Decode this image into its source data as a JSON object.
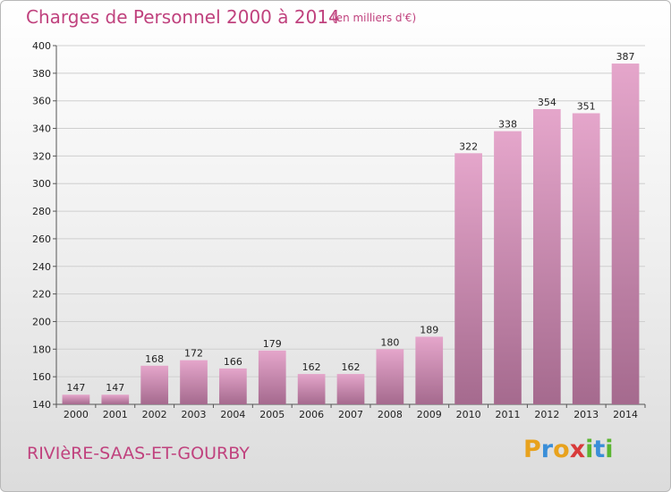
{
  "header": {
    "title": "Charges de Personnel 2000 à 2014",
    "unit": "(en milliers d'€)"
  },
  "footer": {
    "commune": "RIVIèRE-SAAS-ET-GOURBY",
    "logo": [
      "P",
      "r",
      "o",
      "x",
      "i",
      "t",
      "i"
    ],
    "logo_colors": [
      "#e8a21d",
      "#3a8ed8",
      "#e8a21d",
      "#d83a3a",
      "#5bb531",
      "#3a8ed8",
      "#5bb531"
    ]
  },
  "colors": {
    "bar_top": "#e5a6cb",
    "bar_bottom": "#a56a8e",
    "accent": "#c0427e",
    "grid": "#cfcfcf"
  },
  "chart_data": {
    "type": "bar",
    "title": "Charges de Personnel 2000 à 2014",
    "xlabel": "",
    "ylabel": "",
    "categories": [
      "2000",
      "2001",
      "2002",
      "2003",
      "2004",
      "2005",
      "2006",
      "2007",
      "2008",
      "2009",
      "2010",
      "2011",
      "2012",
      "2013",
      "2014"
    ],
    "values": [
      147,
      147,
      168,
      172,
      166,
      179,
      162,
      162,
      180,
      189,
      322,
      338,
      354,
      351,
      387
    ],
    "ylim": [
      140,
      400
    ],
    "yticks": [
      140,
      160,
      180,
      200,
      220,
      240,
      260,
      280,
      300,
      320,
      340,
      360,
      380,
      400
    ],
    "grid": true
  }
}
